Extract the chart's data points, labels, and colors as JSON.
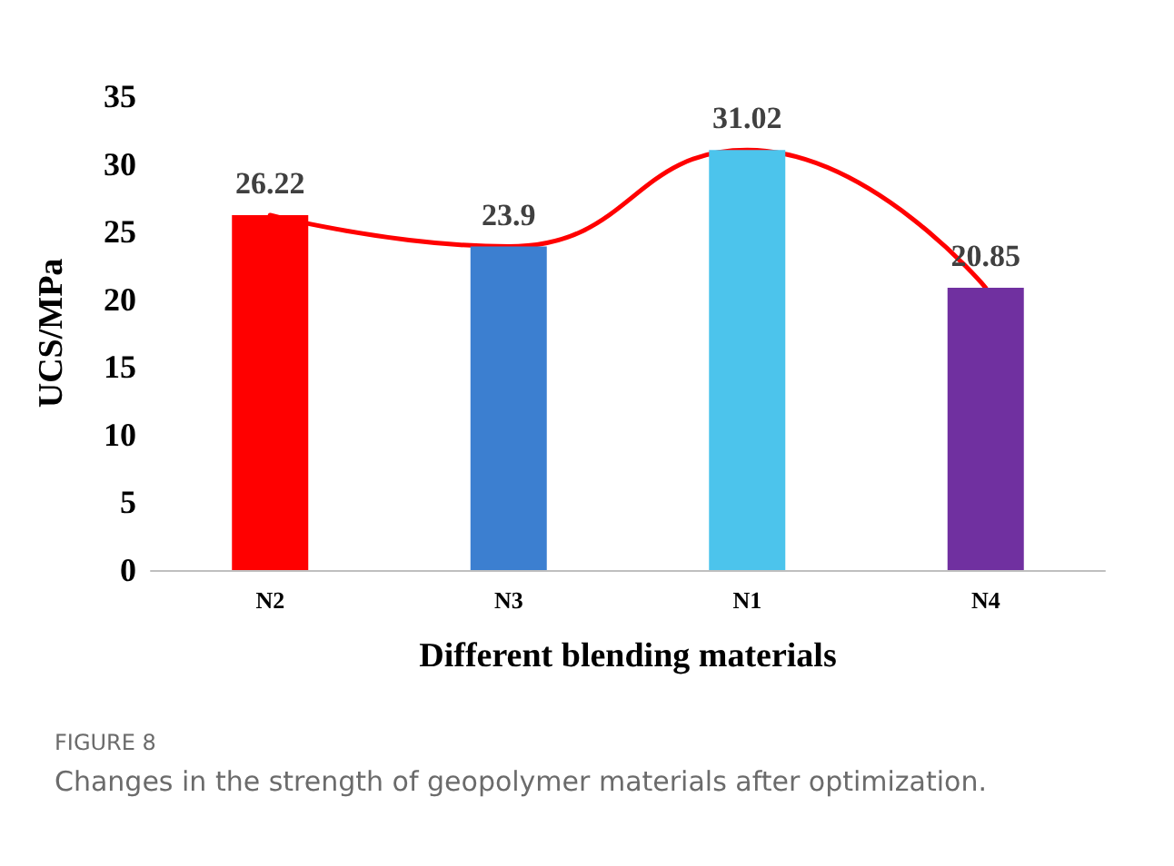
{
  "chart_data": {
    "type": "bar",
    "xlabel": "Different blending materials",
    "ylabel": "UCS/MPa",
    "categories": [
      "N2",
      "N3",
      "N1",
      "N4"
    ],
    "series": [
      {
        "colors": [
          "#ff0000",
          "#3c7fd0",
          "#4cc4ec",
          "#7030a0"
        ],
        "values": [
          26.22,
          23.9,
          31.02,
          20.85
        ],
        "value_labels": [
          "26.22",
          "23.9",
          "31.02",
          "20.85"
        ]
      },
      {
        "type": "line",
        "color": "#ff0000",
        "values": [
          26.22,
          23.9,
          31.02,
          20.85
        ]
      }
    ],
    "ylim": [
      0,
      35
    ],
    "yticks": [
      0,
      5,
      10,
      15,
      20,
      25,
      30,
      35
    ],
    "grid": false,
    "marker": "none",
    "line_style": "solid",
    "annotations": [
      "FIGURE 8",
      "Changes in the strength of geopolymer materials after optimization."
    ]
  }
}
